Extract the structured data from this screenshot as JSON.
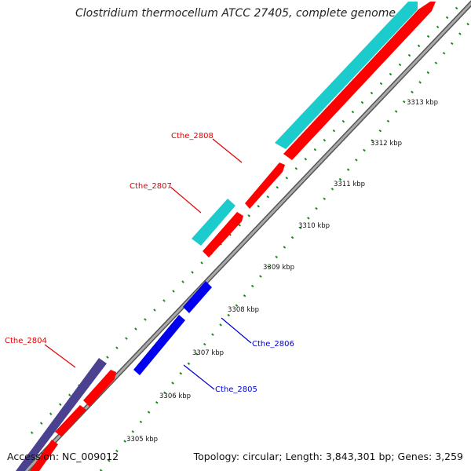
{
  "title": "Clostridium thermocellum ATCC 27405, complete genome",
  "footer": {
    "accession": "Accession: NC_009012",
    "topology": "Topology: circular; Length: 3,843,301 bp; Genes: 3,259"
  },
  "ticks": [
    "3305 kbp",
    "3306 kbp",
    "3307 kbp",
    "3308 kbp",
    "3309 kbp",
    "3310 kbp",
    "3311 kbp",
    "3312 kbp",
    "3313 kbp"
  ],
  "gene_labels": [
    {
      "id": "Cthe_2808",
      "text": "Cthe_2808",
      "color": "#e00000"
    },
    {
      "id": "Cthe_2807",
      "text": "Cthe_2807",
      "color": "#e00000"
    },
    {
      "id": "Cthe_2806",
      "text": "Cthe_2806",
      "color": "#0000cc"
    },
    {
      "id": "Cthe_2805",
      "text": "Cthe_2805",
      "color": "#0000cc"
    },
    {
      "id": "Cthe_2804",
      "text": "Cthe_2804",
      "color": "#e00000"
    }
  ],
  "colors": {
    "backbone": "#888888",
    "cds_red": "#ff0000",
    "cds_blue": "#0000ee",
    "cds_cyan": "#1ccbcb",
    "cds_navy": "#4a4290",
    "tick_dots": "#1a8a1a"
  }
}
